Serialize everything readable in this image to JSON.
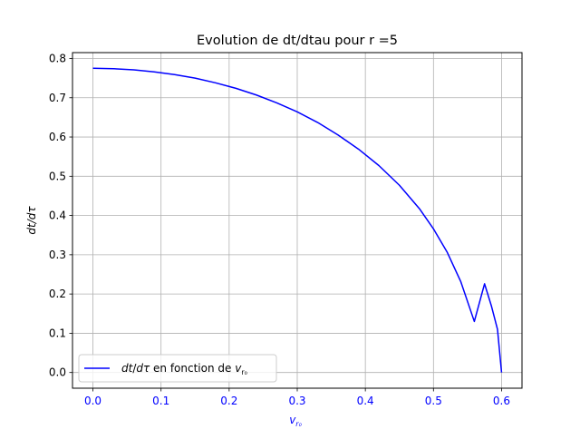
{
  "chart_data": {
    "type": "line",
    "title": "Evolution de dt/dtau pour r =5",
    "xlabel": "v_{r₀}",
    "ylabel": "dt/dτ",
    "xlim": [
      -0.03,
      0.63
    ],
    "ylim": [
      -0.04,
      0.815
    ],
    "x_ticks": [
      0.0,
      0.1,
      0.2,
      0.3,
      0.4,
      0.5,
      0.6
    ],
    "x_tick_labels": [
      "0.0",
      "0.1",
      "0.2",
      "0.3",
      "0.4",
      "0.5",
      "0.6"
    ],
    "y_ticks": [
      0.0,
      0.1,
      0.2,
      0.3,
      0.4,
      0.5,
      0.6,
      0.7,
      0.8
    ],
    "y_tick_labels": [
      "0.0",
      "0.1",
      "0.2",
      "0.3",
      "0.4",
      "0.5",
      "0.6",
      "0.7",
      "0.8"
    ],
    "grid": true,
    "legend_position": "lower-left",
    "series": [
      {
        "name": "dt/dτ en fonction de v_{r₀}",
        "color": "#0000ff",
        "x": [
          0.0,
          0.03,
          0.06,
          0.09,
          0.12,
          0.15,
          0.18,
          0.21,
          0.24,
          0.27,
          0.3,
          0.33,
          0.36,
          0.39,
          0.42,
          0.45,
          0.48,
          0.5,
          0.52,
          0.54,
          0.56,
          0.575,
          0.585,
          0.594,
          0.6
        ],
        "y": [
          0.775,
          0.774,
          0.771,
          0.766,
          0.759,
          0.75,
          0.738,
          0.724,
          0.707,
          0.687,
          0.664,
          0.637,
          0.605,
          0.569,
          0.527,
          0.477,
          0.416,
          0.366,
          0.307,
          0.232,
          0.13,
          0.226,
          0.17,
          0.11,
          0.0
        ]
      }
    ]
  }
}
